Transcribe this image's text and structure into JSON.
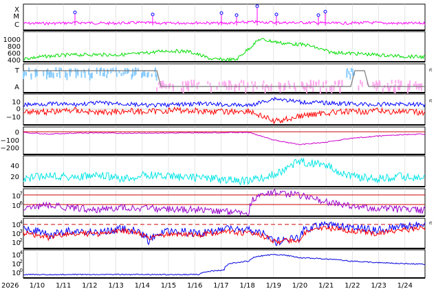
{
  "chart_data": [
    {
      "type": "line",
      "panel": "xray-flare-class",
      "tick_labels": [
        "X",
        "M",
        "C"
      ],
      "series": [
        {
          "color": "#ff00ff",
          "values_class": [
            "C",
            "C",
            "C",
            "C",
            "C",
            "C",
            "C",
            "C",
            "C",
            "C",
            "C",
            "C"
          ]
        }
      ],
      "flare_markers_dates": [
        "1/11.4",
        "1/14.3",
        "1/17.2",
        "1/17.7",
        "1/18.2",
        "1/19.3",
        "1/20.8",
        "1/21.1"
      ]
    },
    {
      "type": "line",
      "panel": "solar-wind-speed",
      "tick_labels": [
        "1000",
        "800",
        "600",
        "400"
      ],
      "ylim": [
        400,
        1000
      ],
      "series": [
        {
          "color": "#00dd00",
          "x": [
            0,
            1,
            2,
            3,
            4,
            5,
            6,
            7,
            8,
            9,
            9.3,
            9.5,
            10,
            11,
            12,
            13,
            14,
            15
          ],
          "values": [
            450,
            520,
            560,
            570,
            560,
            600,
            680,
            660,
            430,
            420,
            1020,
            900,
            850,
            640,
            600,
            560,
            520,
            500
          ]
        }
      ]
    },
    {
      "type": "line",
      "panel": "polarity",
      "tick_labels": [
        "T",
        "A"
      ],
      "marker": "rt"
    },
    {
      "type": "line",
      "panel": "imf-components",
      "tick_labels": [
        "10",
        "0",
        "−10"
      ],
      "ylim": [
        -15,
        15
      ],
      "marker": "rt",
      "series": [
        {
          "color": "#0000ff",
          "values": [
            5,
            6,
            5,
            7,
            6,
            4,
            5,
            6,
            5,
            4,
            12,
            8,
            7,
            6,
            5,
            6,
            5
          ]
        },
        {
          "color": "#ff0000",
          "values": [
            -2,
            -3,
            -1,
            -4,
            -2,
            -3,
            -1,
            -2,
            -3,
            -2,
            -14,
            -8,
            -4,
            -3,
            -2,
            -3,
            -4
          ]
        }
      ]
    },
    {
      "type": "line",
      "panel": "dst-index",
      "tick_labels": [
        "0",
        "−100",
        "−200"
      ],
      "ylim": [
        -240,
        20
      ],
      "series": [
        {
          "color": "#cc00cc",
          "values": [
            -10,
            -30,
            -20,
            -15,
            -20,
            -18,
            -15,
            -12,
            -10,
            -10,
            -110,
            -170,
            -140,
            -90,
            -60,
            -40,
            -30
          ]
        }
      ]
    },
    {
      "type": "line",
      "panel": "kp-index",
      "tick_labels": [
        "40",
        "20"
      ],
      "ylim": [
        0,
        55
      ],
      "series": [
        {
          "color": "#00e5e5",
          "values": [
            10,
            20,
            15,
            18,
            12,
            20,
            16,
            15,
            10,
            8,
            20,
            45,
            38,
            18,
            12,
            16,
            14
          ]
        }
      ]
    },
    {
      "type": "line",
      "panel": "proton-flux",
      "tick_labels": [
        "10^7",
        "10^6"
      ],
      "series": [
        {
          "color": "#9900cc",
          "values": [
            300000.0,
            800000.0,
            400000.0,
            300000.0,
            500000.0,
            400000.0,
            300000.0,
            300000.0,
            200000.0,
            150000.0,
            20000000.0,
            8000000.0,
            2000000.0,
            600000.0,
            400000.0,
            300000.0,
            250000.0
          ]
        }
      ]
    },
    {
      "type": "line",
      "panel": "electron-flux",
      "tick_labels": [
        "10^4",
        "10^3",
        "10^2"
      ],
      "marker": "rt",
      "series": [
        {
          "color": "#0000ff",
          "values": [
            3000.0,
            500.0,
            2000.0,
            1000.0,
            3000.0,
            100.0,
            2000.0,
            800.0,
            3000.0,
            2000.0,
            100.0,
            300.0,
            10000.0,
            4000.0,
            2000.0,
            5000.0,
            8000.0
          ]
        },
        {
          "color": "#ff0000",
          "values": [
            1000.0,
            300.0,
            1000.0,
            800.0,
            2000.0,
            200.0,
            1000.0,
            600.0,
            1500.0,
            1000.0,
            100.0,
            200.0,
            4000.0,
            2000.0,
            1000.0,
            2000.0,
            4000.0
          ]
        }
      ]
    },
    {
      "type": "line",
      "panel": "high-energy-protons",
      "tick_labels": [
        "10^4",
        "10^2",
        "10^0"
      ],
      "series": [
        {
          "color": "#0000dd",
          "values": [
            1,
            1,
            1,
            1,
            1,
            1,
            1,
            1,
            10,
            1000.0,
            30000.0,
            6000.0,
            3000.0,
            1000.0,
            500.0,
            300.0,
            200.0
          ]
        }
      ]
    }
  ],
  "xaxis": {
    "year": "2026",
    "ticks": [
      "1/10",
      "1/11",
      "1/12",
      "1/13",
      "1/14",
      "1/15",
      "1/16",
      "1/17",
      "1/18",
      "1/19",
      "1/20",
      "1/21",
      "1/22",
      "1/23",
      "1/24"
    ]
  },
  "right_marker": "rt"
}
